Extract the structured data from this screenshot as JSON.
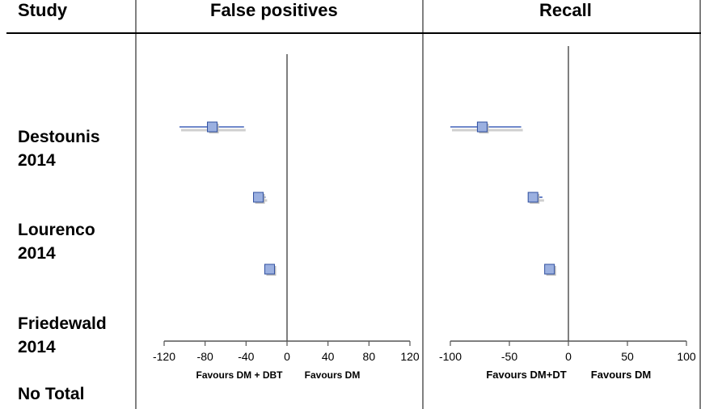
{
  "headers": {
    "study": "Study",
    "false_positives": "False positives",
    "recall": "Recall"
  },
  "studies": [
    {
      "line1": "Destounis",
      "line2": "2014"
    },
    {
      "line1": "Lourenco",
      "line2": "2014"
    },
    {
      "line1": "Friedewald",
      "line2": "2014"
    },
    {
      "line1": "No Total",
      "line2": ""
    }
  ],
  "colors": {
    "marker_fill": "#9bb0e0",
    "marker_stroke": "#2f4f9f",
    "ci_line": "#4060b8",
    "axis": "#555555"
  },
  "chart_data": [
    {
      "type": "scatter",
      "title": "False positives",
      "xlim": [
        -120,
        120
      ],
      "xticks": [
        -120,
        -80,
        -40,
        0,
        40,
        80,
        120
      ],
      "xlabel_left": "Favours DM + DBT",
      "xlabel_right": "Favours DM",
      "series": [
        {
          "study": "Destounis 2014",
          "estimate": -73,
          "ci": [
            -105,
            -42
          ]
        },
        {
          "study": "Lourenco 2014",
          "estimate": -28,
          "ci": [
            -31,
            -21
          ]
        },
        {
          "study": "Friedewald 2014",
          "estimate": -17,
          "ci": [
            -17,
            -17
          ]
        }
      ]
    },
    {
      "type": "scatter",
      "title": "Recall",
      "xlim": [
        -100,
        100
      ],
      "xticks": [
        -100,
        -50,
        0,
        50,
        100
      ],
      "xlabel_left": "Favours DM+DT",
      "xlabel_right": "Favours DM",
      "series": [
        {
          "study": "Destounis 2014",
          "estimate": -73,
          "ci": [
            -100,
            -40
          ]
        },
        {
          "study": "Lourenco 2014",
          "estimate": -30,
          "ci": [
            -30,
            -22
          ]
        },
        {
          "study": "Friedewald 2014",
          "estimate": -16,
          "ci": [
            -16,
            -16
          ]
        }
      ]
    }
  ]
}
